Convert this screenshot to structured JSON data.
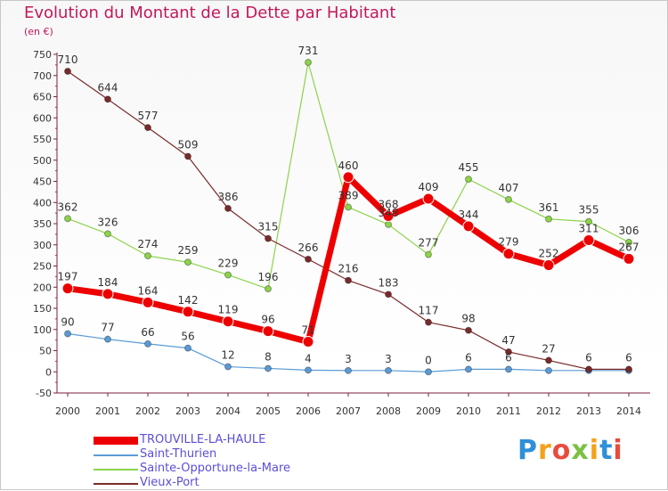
{
  "chart_data": {
    "type": "line",
    "title": "Evolution du Montant de la Dette par Habitant",
    "subtitle": "(en €)",
    "x": [
      "2000",
      "2001",
      "2002",
      "2003",
      "2004",
      "2005",
      "2006",
      "2007",
      "2008",
      "2009",
      "2010",
      "2011",
      "2012",
      "2013",
      "2014"
    ],
    "ylim": [
      -50,
      750
    ],
    "yticks": [
      -50,
      0,
      50,
      100,
      150,
      200,
      250,
      300,
      350,
      400,
      450,
      500,
      550,
      600,
      650,
      700,
      750
    ],
    "grid": false,
    "legend_position": "bottom-left",
    "series": [
      {
        "name": "TROUVILLE-LA-HAULE",
        "color": "#ee0000",
        "width": 7,
        "values": [
          197,
          184,
          164,
          142,
          119,
          96,
          71,
          460,
          368,
          409,
          344,
          279,
          252,
          311,
          267
        ],
        "labels": [
          "197",
          "184",
          "164",
          "142",
          "119",
          "96",
          "71",
          "460",
          "368",
          "409",
          "344",
          "279",
          "252",
          "311",
          "267"
        ]
      },
      {
        "name": "Saint-Thurien",
        "color": "#5b9bd5",
        "width": 1.2,
        "values": [
          90,
          77,
          66,
          56,
          12,
          8,
          4,
          3,
          3,
          0,
          6,
          6,
          3,
          3,
          3
        ],
        "labels": [
          "90",
          "77",
          "66",
          "56",
          "12",
          "8",
          "4",
          "3",
          "3",
          "0",
          "6",
          "6",
          "",
          "",
          ""
        ]
      },
      {
        "name": "Sainte-Opportune-la-Mare",
        "color": "#8cd44a",
        "width": 1.2,
        "values": [
          362,
          326,
          274,
          259,
          229,
          196,
          731,
          389,
          348,
          277,
          455,
          407,
          361,
          355,
          306
        ],
        "labels": [
          "362",
          "326",
          "274",
          "259",
          "229",
          "196",
          "731",
          "389",
          "348",
          "277",
          "455",
          "407",
          "361",
          "355",
          "306"
        ]
      },
      {
        "name": "Vieux-Port",
        "color": "#7a2a2a",
        "width": 1.2,
        "values": [
          710,
          644,
          577,
          509,
          386,
          315,
          266,
          216,
          183,
          117,
          98,
          47,
          27,
          6,
          6
        ],
        "labels": [
          "710",
          "644",
          "577",
          "509",
          "386",
          "315",
          "266",
          "216",
          "183",
          "117",
          "98",
          "47",
          "27",
          "6",
          "6"
        ]
      }
    ]
  },
  "legend": {
    "items": [
      {
        "label": "TROUVILLE-LA-HAULE",
        "color": "#ee0000"
      },
      {
        "label": "Saint-Thurien",
        "color": "#5b9bd5"
      },
      {
        "label": "Sainte-Opportune-la-Mare",
        "color": "#8cd44a"
      },
      {
        "label": "Vieux-Port",
        "color": "#7a2a2a"
      }
    ]
  },
  "logo": {
    "letters": [
      "P",
      "r",
      "o",
      "x",
      "i",
      "t",
      "i"
    ],
    "colors": [
      "#2f8fd8",
      "#f3a21a",
      "#e84c3d",
      "#7bc043",
      "#f3a21a",
      "#2f8fd8",
      "#e84c3d"
    ]
  }
}
